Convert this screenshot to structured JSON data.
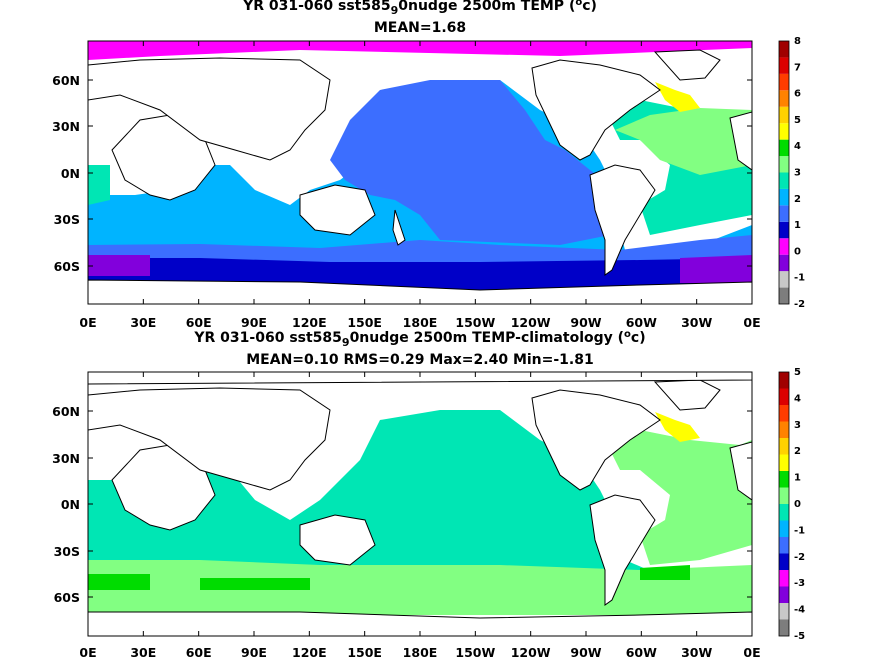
{
  "chart_data": [
    {
      "type": "heatmap",
      "title_parts": {
        "prefix": "YR 031-060 sst585",
        "sub": "9",
        "middle": "0nudge 2500m TEMP (",
        "sup": "o",
        "suffix": "c)"
      },
      "subtitle": "MEAN=1.68",
      "x_tick_labels": [
        "0E",
        "30E",
        "60E",
        "90E",
        "120E",
        "150E",
        "180E",
        "150W",
        "120W",
        "90W",
        "60W",
        "30W",
        "0E"
      ],
      "y_tick_labels": [
        "60N",
        "30N",
        "0N",
        "30S",
        "60S"
      ],
      "colorbar": {
        "levels": [
          "-2",
          "-1",
          "0",
          "1",
          "2",
          "3",
          "4",
          "5",
          "6",
          "7",
          "8"
        ],
        "colors": [
          "#7d7d7d",
          "#c8c8c8",
          "#8200dc",
          "#ff00ff",
          "#0000c8",
          "#3c6eff",
          "#00b4ff",
          "#00e6b4",
          "#82ff82",
          "#00dc00",
          "#ffff00",
          "#ffd200",
          "#ff8200",
          "#ff3c00",
          "#dc0000",
          "#a00000"
        ]
      }
    },
    {
      "type": "heatmap",
      "title_parts": {
        "prefix": "YR 031-060 sst585",
        "sub": "9",
        "middle": "0nudge 2500m TEMP-climatology (",
        "sup": "o",
        "suffix": "c)"
      },
      "subtitle": "MEAN=0.10   RMS=0.29   Max=2.40   Min=-1.81",
      "x_tick_labels": [
        "0E",
        "30E",
        "60E",
        "90E",
        "120E",
        "150E",
        "180E",
        "150W",
        "120W",
        "90W",
        "60W",
        "30W",
        "0E"
      ],
      "y_tick_labels": [
        "60N",
        "30N",
        "0N",
        "30S",
        "60S"
      ],
      "colorbar": {
        "levels": [
          "-5",
          "-4",
          "-3",
          "-2",
          "-1",
          "0",
          "1",
          "2",
          "3",
          "4",
          "5"
        ],
        "colors": [
          "#7d7d7d",
          "#c8c8c8",
          "#8200dc",
          "#ff00ff",
          "#0000c8",
          "#3c6eff",
          "#00b4ff",
          "#00e6b4",
          "#82ff82",
          "#00dc00",
          "#ffff00",
          "#ffd200",
          "#ff8200",
          "#ff3c00",
          "#dc0000",
          "#a00000"
        ]
      }
    }
  ]
}
